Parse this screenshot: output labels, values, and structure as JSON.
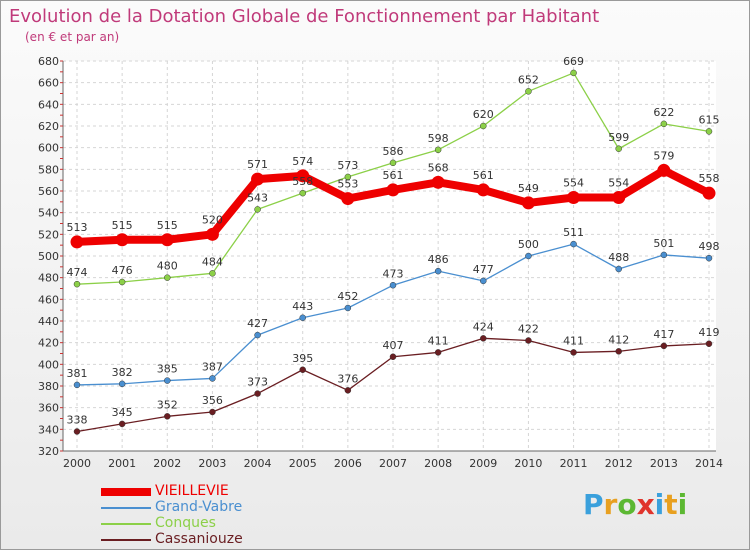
{
  "header": {
    "title": "Evolution de la Dotation Globale de Fonctionnement par Habitant",
    "subtitle": "(en € et par an)"
  },
  "logo": {
    "text": "Proxiti",
    "colors": [
      "#3aa0dc",
      "#e8a020",
      "#5cb832",
      "#e0342c",
      "#3aa0dc",
      "#e8a020",
      "#5cb832"
    ]
  },
  "chart_data": {
    "type": "line",
    "x": [
      "2000",
      "2001",
      "2002",
      "2003",
      "2004",
      "2005",
      "2006",
      "2007",
      "2008",
      "2009",
      "2010",
      "2011",
      "2012",
      "2013",
      "2014"
    ],
    "ylim": [
      320,
      680
    ],
    "yticks": [
      320,
      340,
      360,
      380,
      400,
      420,
      440,
      460,
      480,
      500,
      520,
      540,
      560,
      580,
      600,
      620,
      640,
      660,
      680
    ],
    "grid": true,
    "legend_position": "bottom-left",
    "series": [
      {
        "name": "VIEILLEVIE",
        "color": "#ee0000",
        "emphasis": true,
        "values": [
          513,
          515,
          515,
          520,
          571,
          574,
          553,
          561,
          568,
          561,
          549,
          554,
          554,
          579,
          558
        ],
        "labels": [
          "513",
          "515",
          "515",
          "520",
          "571",
          "574",
          "553",
          "561",
          "568",
          "561",
          "549",
          "554",
          "554",
          "579",
          "558"
        ]
      },
      {
        "name": "Grand-Vabre",
        "color": "#4a8fd0",
        "emphasis": false,
        "values": [
          381,
          382,
          385,
          387,
          427,
          443,
          452,
          473,
          486,
          477,
          500,
          511,
          488,
          501,
          498
        ],
        "labels": [
          "381",
          "382",
          "385",
          "387",
          "427",
          "443",
          "452",
          "473",
          "486",
          "477",
          "500",
          "511",
          "488",
          "501",
          "498"
        ]
      },
      {
        "name": "Conques",
        "color": "#8cd048",
        "emphasis": false,
        "values": [
          474,
          476,
          480,
          484,
          543,
          558,
          573,
          586,
          598,
          620,
          652,
          669,
          599,
          622,
          615
        ],
        "labels": [
          "474",
          "476",
          "480",
          "484",
          "543",
          "558",
          "573",
          "586",
          "598",
          "620",
          "652",
          "669",
          "599",
          "622",
          "615"
        ]
      },
      {
        "name": "Cassaniouze",
        "color": "#6a1e22",
        "emphasis": false,
        "values": [
          338,
          345,
          352,
          356,
          373,
          395,
          376,
          407,
          411,
          424,
          422,
          411,
          412,
          417,
          419
        ],
        "labels": [
          "338",
          "345",
          "352",
          "356",
          "373",
          "395",
          "376",
          "407",
          "411",
          "424",
          "422",
          "411",
          "412",
          "417",
          "419"
        ]
      }
    ]
  }
}
